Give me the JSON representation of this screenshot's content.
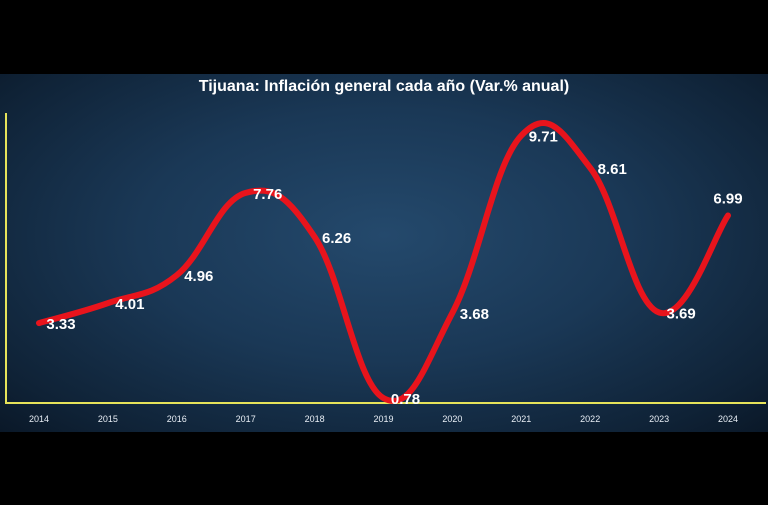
{
  "chart_data": {
    "type": "line",
    "title": "Tijuana: Inflación general cada año (Var.% anual)",
    "xlabel": "",
    "ylabel": "",
    "categories": [
      "2014",
      "2015",
      "2016",
      "2017",
      "2018",
      "2019",
      "2020",
      "2021",
      "2022",
      "2023",
      "2024"
    ],
    "values": [
      3.33,
      4.01,
      4.96,
      7.76,
      6.26,
      0.78,
      3.68,
      9.71,
      8.61,
      3.69,
      6.99
    ],
    "data_labels": [
      "3.33",
      "4.01",
      "4.96",
      "7.76",
      "6.26",
      "0.78",
      "3.68",
      "9.71",
      "8.61",
      "3.69",
      "6.99"
    ],
    "smooth": true,
    "grid": false,
    "legend": "none",
    "colors": {
      "line": "#e8141c",
      "axis": "#e6e35a",
      "text": "#ffffff",
      "background": "#1a3856"
    }
  }
}
